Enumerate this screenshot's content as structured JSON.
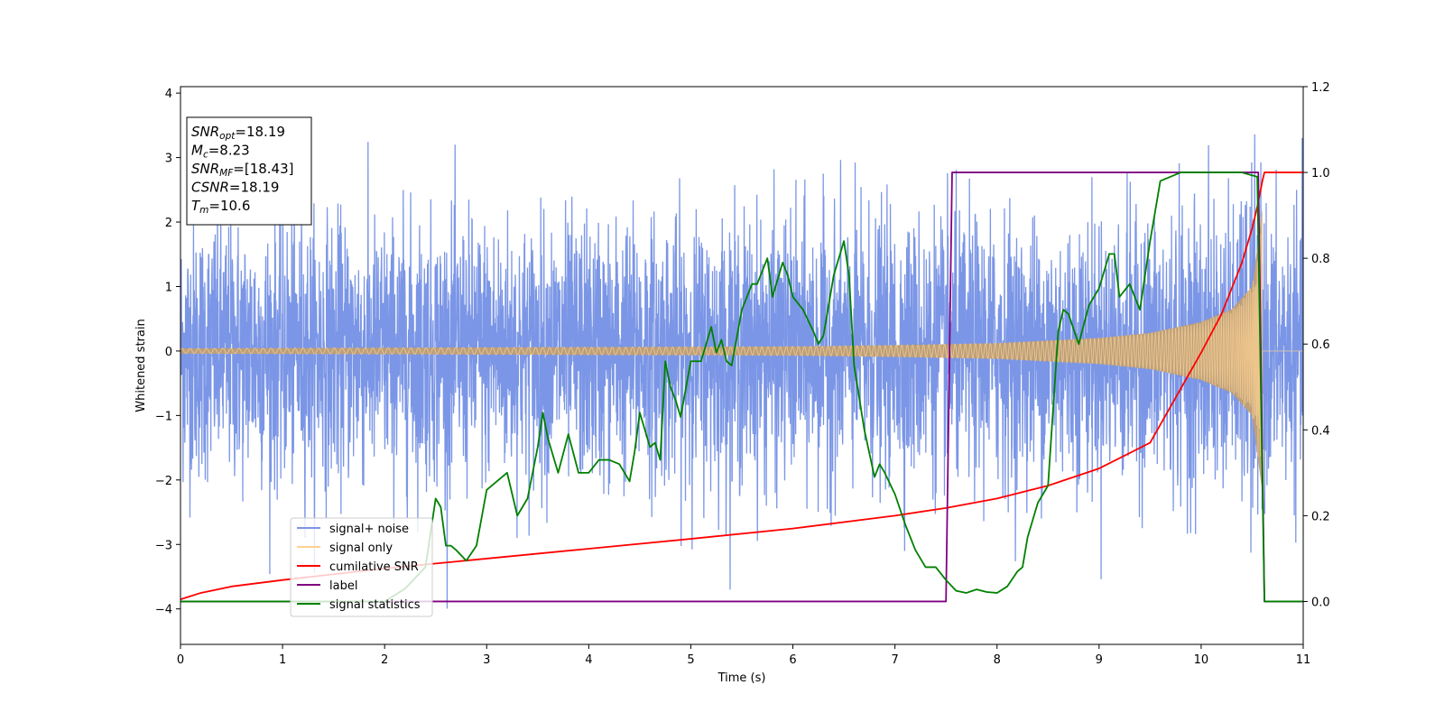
{
  "chart_data": {
    "type": "line",
    "xlabel": "Time (s)",
    "ylabel_left": "Whitened strain",
    "xlim": [
      0,
      11
    ],
    "ylim_left": [
      -4.55,
      4.1
    ],
    "ylim_right": [
      -0.1,
      1.2
    ],
    "x_ticks": [
      0,
      1,
      2,
      3,
      4,
      5,
      6,
      7,
      8,
      9,
      10,
      11
    ],
    "y_ticks_left": [
      4,
      3,
      2,
      1,
      0,
      -1,
      -2,
      -3,
      -4
    ],
    "y_ticks_left_labels": [
      "4",
      "3",
      "2",
      "1",
      "0",
      "−1",
      "−2",
      "−3",
      "−4"
    ],
    "y_ticks_right": [
      1.2,
      1.0,
      0.8,
      0.6,
      0.4,
      0.2,
      0.0
    ],
    "y_ticks_right_labels": [
      "1.2",
      "1.0",
      "0.8",
      "0.6",
      "0.4",
      "0.2",
      "0.0"
    ],
    "grid": false,
    "legend_position": "lower-left",
    "info_box": {
      "lines": [
        {
          "base": "SNR",
          "sub": "opt",
          "rest": "=18.19"
        },
        {
          "base": "M",
          "sub": "c",
          "rest": "=8.23"
        },
        {
          "base": "SNR",
          "sub": "MF",
          "rest": "=[18.43]"
        },
        {
          "base": "CSNR",
          "sub": "",
          "rest": "=18.19"
        },
        {
          "base": "T",
          "sub": "m",
          "rest": "=10.6"
        }
      ]
    },
    "series": [
      {
        "name": "signal+ noise",
        "color": "#7b96e6",
        "axis": "left",
        "kind": "noise",
        "sigma": 1.0,
        "approx_envelope": {
          "x": [
            0,
            11
          ],
          "y": [
            -2.6,
            3.7
          ]
        }
      },
      {
        "name": "signal only",
        "color": "#fdd291",
        "fill_color": "#bf9f76",
        "axis": "left",
        "kind": "chirp",
        "amplitude_envelope": {
          "x": [
            0,
            2,
            4,
            6,
            7,
            8,
            9,
            9.5,
            10,
            10.3,
            10.5,
            10.6
          ],
          "y": [
            0.04,
            0.05,
            0.06,
            0.07,
            0.09,
            0.12,
            0.2,
            0.28,
            0.45,
            0.65,
            1.0,
            2.2
          ]
        },
        "after_merger": {
          "x": [
            10.6,
            11
          ],
          "y": [
            0,
            0
          ]
        }
      },
      {
        "name": "cumilative SNR",
        "color": "#ff0000",
        "axis": "right",
        "x": [
          0,
          0.2,
          0.5,
          1,
          2,
          3,
          4,
          5,
          6,
          7,
          7.5,
          8,
          8.5,
          9,
          9.5,
          10,
          10.2,
          10.4,
          10.5,
          10.55,
          10.6,
          10.62,
          11
        ],
        "y": [
          0.005,
          0.02,
          0.035,
          0.05,
          0.077,
          0.1,
          0.123,
          0.146,
          0.17,
          0.2,
          0.218,
          0.24,
          0.27,
          0.31,
          0.37,
          0.58,
          0.67,
          0.79,
          0.87,
          0.92,
          0.98,
          1.0,
          1.0
        ]
      },
      {
        "name": "label",
        "color": "#800080",
        "axis": "right",
        "x": [
          0,
          7.5,
          7.56,
          10.56,
          10.62,
          11
        ],
        "y": [
          0,
          0,
          1,
          1,
          0,
          0
        ]
      },
      {
        "name": "signal statistics",
        "color": "#008000",
        "axis": "right",
        "x": [
          0,
          2.0,
          2.2,
          2.4,
          2.5,
          2.55,
          2.6,
          2.65,
          2.7,
          2.8,
          2.9,
          3.0,
          3.1,
          3.2,
          3.3,
          3.4,
          3.5,
          3.55,
          3.6,
          3.7,
          3.8,
          3.9,
          4.0,
          4.1,
          4.2,
          4.3,
          4.4,
          4.45,
          4.5,
          4.6,
          4.65,
          4.7,
          4.75,
          4.8,
          4.85,
          4.9,
          5.0,
          5.1,
          5.2,
          5.25,
          5.3,
          5.35,
          5.4,
          5.5,
          5.6,
          5.65,
          5.75,
          5.8,
          5.9,
          5.95,
          6.0,
          6.1,
          6.2,
          6.25,
          6.3,
          6.4,
          6.5,
          6.55,
          6.6,
          6.7,
          6.8,
          6.85,
          6.9,
          7.0,
          7.1,
          7.2,
          7.3,
          7.4,
          7.5,
          7.6,
          7.7,
          7.8,
          7.9,
          8.0,
          8.1,
          8.2,
          8.25,
          8.3,
          8.4,
          8.5,
          8.6,
          8.65,
          8.7,
          8.8,
          8.9,
          9.0,
          9.1,
          9.15,
          9.2,
          9.3,
          9.4,
          9.5,
          9.6,
          9.7,
          9.8,
          10.0,
          10.2,
          10.4,
          10.55,
          10.62,
          10.7,
          11
        ],
        "y": [
          0.0,
          0.0,
          0.03,
          0.08,
          0.24,
          0.22,
          0.13,
          0.13,
          0.12,
          0.095,
          0.13,
          0.26,
          0.28,
          0.3,
          0.2,
          0.24,
          0.36,
          0.44,
          0.38,
          0.3,
          0.39,
          0.3,
          0.3,
          0.33,
          0.33,
          0.32,
          0.28,
          0.35,
          0.44,
          0.36,
          0.37,
          0.33,
          0.56,
          0.5,
          0.47,
          0.43,
          0.56,
          0.56,
          0.64,
          0.58,
          0.61,
          0.56,
          0.55,
          0.68,
          0.74,
          0.74,
          0.8,
          0.71,
          0.79,
          0.76,
          0.71,
          0.68,
          0.63,
          0.6,
          0.62,
          0.76,
          0.84,
          0.76,
          0.55,
          0.4,
          0.29,
          0.32,
          0.3,
          0.25,
          0.18,
          0.12,
          0.08,
          0.08,
          0.05,
          0.025,
          0.02,
          0.028,
          0.022,
          0.02,
          0.035,
          0.07,
          0.08,
          0.15,
          0.23,
          0.27,
          0.63,
          0.68,
          0.67,
          0.6,
          0.69,
          0.73,
          0.81,
          0.81,
          0.71,
          0.74,
          0.68,
          0.84,
          0.98,
          0.99,
          1.0,
          1.0,
          1.0,
          1.0,
          0.99,
          0.0,
          0.0,
          0.0
        ]
      }
    ]
  }
}
